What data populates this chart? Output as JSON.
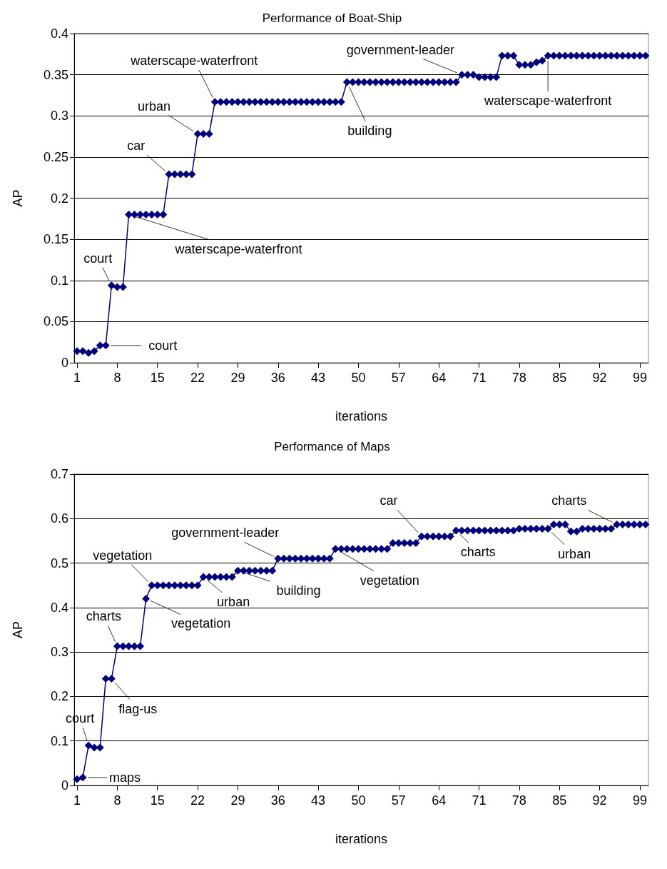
{
  "chart_data": [
    {
      "type": "line",
      "title": "Performance of Boat-Ship",
      "xlabel": "iterations",
      "ylabel": "AP",
      "x": [
        1,
        2,
        3,
        4,
        5,
        6,
        7,
        8,
        9,
        10,
        11,
        12,
        13,
        14,
        15,
        16,
        17,
        18,
        19,
        20,
        21,
        22,
        23,
        24,
        25,
        26,
        27,
        28,
        29,
        30,
        31,
        32,
        33,
        34,
        35,
        36,
        37,
        38,
        39,
        40,
        41,
        42,
        43,
        44,
        45,
        46,
        47,
        48,
        49,
        50,
        51,
        52,
        53,
        54,
        55,
        56,
        57,
        58,
        59,
        60,
        61,
        62,
        63,
        64,
        65,
        66,
        67,
        68,
        69,
        70,
        71,
        72,
        73,
        74,
        75,
        76,
        77,
        78,
        79,
        80,
        81,
        82,
        83,
        84,
        85,
        86,
        87,
        88,
        89,
        90,
        91,
        92,
        93,
        94,
        95,
        96,
        97,
        98,
        99,
        100
      ],
      "series": [
        {
          "color": "#000080",
          "values": [
            0.014,
            0.014,
            0.012,
            0.014,
            0.021,
            0.021,
            0.094,
            0.092,
            0.092,
            0.18,
            0.18,
            0.18,
            0.18,
            0.18,
            0.18,
            0.18,
            0.229,
            0.229,
            0.229,
            0.229,
            0.229,
            0.278,
            0.278,
            0.278,
            0.317,
            0.317,
            0.317,
            0.317,
            0.317,
            0.317,
            0.317,
            0.317,
            0.317,
            0.317,
            0.317,
            0.317,
            0.317,
            0.317,
            0.317,
            0.317,
            0.317,
            0.317,
            0.317,
            0.317,
            0.317,
            0.317,
            0.317,
            0.341,
            0.341,
            0.341,
            0.341,
            0.341,
            0.341,
            0.341,
            0.341,
            0.341,
            0.341,
            0.341,
            0.341,
            0.341,
            0.341,
            0.341,
            0.341,
            0.341,
            0.341,
            0.341,
            0.341,
            0.35,
            0.35,
            0.35,
            0.347,
            0.347,
            0.347,
            0.347,
            0.373,
            0.373,
            0.373,
            0.362,
            0.362,
            0.362,
            0.365,
            0.367,
            0.373,
            0.373,
            0.373,
            0.373,
            0.373,
            0.373,
            0.373,
            0.373,
            0.373,
            0.373,
            0.373,
            0.373,
            0.373,
            0.373,
            0.373,
            0.373,
            0.373,
            0.373
          ]
        }
      ],
      "xlim": [
        0.5,
        100.5
      ],
      "xticks": [
        1,
        8,
        15,
        22,
        29,
        36,
        43,
        50,
        57,
        64,
        71,
        78,
        85,
        92,
        99
      ],
      "ylim": [
        0,
        0.4
      ],
      "yticks": [
        0,
        0.05,
        0.1,
        0.15,
        0.2,
        0.25,
        0.3,
        0.35,
        0.4
      ],
      "grid": "y",
      "marker": "diamond",
      "line_style": "solid",
      "annotations": [
        {
          "text": "court",
          "x": 7,
          "y": 0.094
        },
        {
          "text": "court",
          "x": 6,
          "y": 0.021
        },
        {
          "text": "waterscape-waterfront",
          "x": 10,
          "y": 0.18
        },
        {
          "text": "car",
          "x": 17,
          "y": 0.229
        },
        {
          "text": "urban",
          "x": 22,
          "y": 0.278
        },
        {
          "text": "waterscape-waterfront",
          "x": 25,
          "y": 0.317
        },
        {
          "text": "building",
          "x": 48,
          "y": 0.341
        },
        {
          "text": "government-leader",
          "x": 68,
          "y": 0.35
        },
        {
          "text": "waterscape-waterfront",
          "x": 83,
          "y": 0.373
        }
      ]
    },
    {
      "type": "line",
      "title": "Performance of Maps",
      "xlabel": "iterations",
      "ylabel": "AP",
      "x": [
        1,
        2,
        3,
        4,
        5,
        6,
        7,
        8,
        9,
        10,
        11,
        12,
        13,
        14,
        15,
        16,
        17,
        18,
        19,
        20,
        21,
        22,
        23,
        24,
        25,
        26,
        27,
        28,
        29,
        30,
        31,
        32,
        33,
        34,
        35,
        36,
        37,
        38,
        39,
        40,
        41,
        42,
        43,
        44,
        45,
        46,
        47,
        48,
        49,
        50,
        51,
        52,
        53,
        54,
        55,
        56,
        57,
        58,
        59,
        60,
        61,
        62,
        63,
        64,
        65,
        66,
        67,
        68,
        69,
        70,
        71,
        72,
        73,
        74,
        75,
        76,
        77,
        78,
        79,
        80,
        81,
        82,
        83,
        84,
        85,
        86,
        87,
        88,
        89,
        90,
        91,
        92,
        93,
        94,
        95,
        96,
        97,
        98,
        99,
        100
      ],
      "series": [
        {
          "color": "#000080",
          "values": [
            0.014,
            0.018,
            0.09,
            0.085,
            0.085,
            0.24,
            0.24,
            0.313,
            0.313,
            0.313,
            0.313,
            0.313,
            0.42,
            0.45,
            0.45,
            0.45,
            0.45,
            0.45,
            0.45,
            0.45,
            0.45,
            0.45,
            0.469,
            0.469,
            0.469,
            0.469,
            0.469,
            0.469,
            0.483,
            0.483,
            0.483,
            0.483,
            0.483,
            0.483,
            0.483,
            0.51,
            0.51,
            0.51,
            0.51,
            0.51,
            0.51,
            0.51,
            0.51,
            0.51,
            0.51,
            0.532,
            0.532,
            0.532,
            0.532,
            0.532,
            0.532,
            0.532,
            0.532,
            0.532,
            0.532,
            0.545,
            0.545,
            0.545,
            0.545,
            0.545,
            0.56,
            0.56,
            0.56,
            0.56,
            0.56,
            0.56,
            0.573,
            0.573,
            0.573,
            0.573,
            0.573,
            0.573,
            0.573,
            0.573,
            0.573,
            0.573,
            0.573,
            0.577,
            0.577,
            0.577,
            0.577,
            0.577,
            0.577,
            0.587,
            0.587,
            0.587,
            0.571,
            0.571,
            0.577,
            0.577,
            0.577,
            0.577,
            0.577,
            0.577,
            0.587,
            0.587,
            0.587,
            0.587,
            0.587,
            0.587
          ]
        }
      ],
      "xlim": [
        0.5,
        100.5
      ],
      "xticks": [
        1,
        8,
        15,
        22,
        29,
        36,
        43,
        50,
        57,
        64,
        71,
        78,
        85,
        92,
        99
      ],
      "ylim": [
        0,
        0.7
      ],
      "yticks": [
        0,
        0.1,
        0.2,
        0.3,
        0.4,
        0.5,
        0.6,
        0.7
      ],
      "grid": "y",
      "marker": "diamond",
      "line_style": "solid",
      "annotations": [
        {
          "text": "court",
          "x": 3,
          "y": 0.09
        },
        {
          "text": "maps",
          "x": 2,
          "y": 0.018
        },
        {
          "text": "flag-us",
          "x": 7,
          "y": 0.24
        },
        {
          "text": "charts",
          "x": 8,
          "y": 0.313
        },
        {
          "text": "vegetation",
          "x": 14,
          "y": 0.45
        },
        {
          "text": "vegetation",
          "x": 13,
          "y": 0.42
        },
        {
          "text": "urban",
          "x": 23,
          "y": 0.469
        },
        {
          "text": "building",
          "x": 29,
          "y": 0.483
        },
        {
          "text": "government-leader",
          "x": 36,
          "y": 0.51
        },
        {
          "text": "vegetation",
          "x": 46,
          "y": 0.532
        },
        {
          "text": "car",
          "x": 61,
          "y": 0.56
        },
        {
          "text": "charts",
          "x": 67,
          "y": 0.573
        },
        {
          "text": "urban",
          "x": 83,
          "y": 0.577
        },
        {
          "text": "charts",
          "x": 95,
          "y": 0.587
        }
      ]
    }
  ]
}
